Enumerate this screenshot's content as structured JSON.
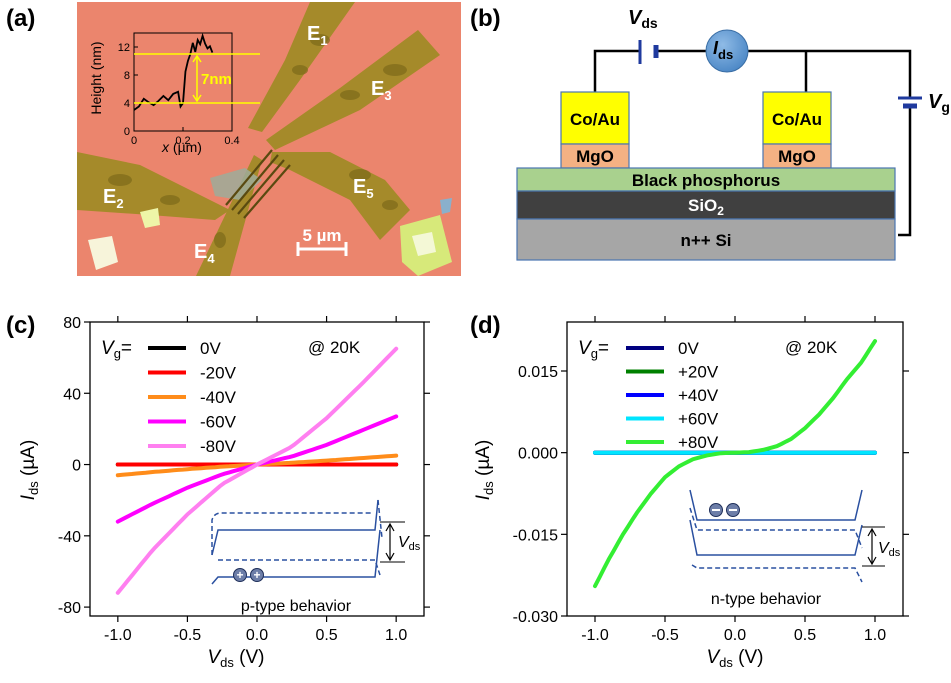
{
  "panel_a": {
    "label": "(a)",
    "electrodes": [
      {
        "name": "E",
        "sub": "1"
      },
      {
        "name": "E",
        "sub": "2"
      },
      {
        "name": "E",
        "sub": "3"
      },
      {
        "name": "E",
        "sub": "4"
      },
      {
        "name": "E",
        "sub": "5"
      }
    ],
    "scalebar": "5 µm",
    "inset": {
      "ylabel": "Height (nm)",
      "xlabel_main": "x",
      "xlabel_unit": " (µm)",
      "yticks": [
        "0",
        "4",
        "8",
        "12"
      ],
      "xticks": [
        "0",
        "0.2",
        "0.4"
      ],
      "step_label": "7nm",
      "profile": [
        [
          0.0,
          3.0
        ],
        [
          0.02,
          3.5
        ],
        [
          0.04,
          4.6
        ],
        [
          0.06,
          4.1
        ],
        [
          0.08,
          3.7
        ],
        [
          0.1,
          4.3
        ],
        [
          0.12,
          5.0
        ],
        [
          0.14,
          4.4
        ],
        [
          0.16,
          5.3
        ],
        [
          0.18,
          5.6
        ],
        [
          0.19,
          3.5
        ],
        [
          0.2,
          4.0
        ],
        [
          0.21,
          8.5
        ],
        [
          0.22,
          10.0
        ],
        [
          0.23,
          11.0
        ],
        [
          0.24,
          12.6
        ],
        [
          0.25,
          11.3
        ],
        [
          0.26,
          13.0
        ],
        [
          0.27,
          12.4
        ],
        [
          0.28,
          13.6
        ],
        [
          0.29,
          12.5
        ],
        [
          0.3,
          11.8
        ],
        [
          0.31,
          12.1
        ],
        [
          0.32,
          11.2
        ]
      ]
    }
  },
  "panel_b": {
    "label": "(b)",
    "vds": {
      "main": "V",
      "sub": "ds"
    },
    "ids": {
      "main": "I",
      "sub": "ds"
    },
    "vg": {
      "main": "V",
      "sub": "g"
    },
    "contact_left": "Co/Au",
    "contact_right": "Co/Au",
    "barrier_left": "MgO",
    "barrier_right": "MgO",
    "channel": "Black phosphorus",
    "oxide": {
      "main": "SiO",
      "sub": "2"
    },
    "substrate": "n++ Si",
    "colors": {
      "contact": "#ffff00",
      "barrier": "#f4b183",
      "channel": "#a9d18e",
      "oxide": "#404040",
      "substrate": "#a6a6a6",
      "meter": "#5b9bd5",
      "battery": "#1f3a9e"
    }
  },
  "panel_c": {
    "label": "(c)",
    "legend_title": "V",
    "legend_title_sub": "g",
    "legend_title_suffix": "=",
    "temperature": "@ 20K",
    "inset_text": "p-type behavior",
    "inset_vds": "V",
    "inset_vds_sub": "ds",
    "chart_data": {
      "type": "line",
      "xlabel": "V",
      "xlabel_sub": "ds",
      "xlabel_unit": " (V)",
      "ylabel": "I",
      "ylabel_sub": "ds",
      "ylabel_unit": " (µA)",
      "xlim": [
        -1.2,
        1.2
      ],
      "ylim": [
        -85,
        80
      ],
      "xticks": [
        "-1.0",
        "-0.5",
        "0.0",
        "0.5",
        "1.0"
      ],
      "yticks": [
        "-80",
        "-40",
        "0",
        "40",
        "80"
      ],
      "x": [
        -1.0,
        -0.75,
        -0.5,
        -0.25,
        0.0,
        0.25,
        0.5,
        0.75,
        1.0
      ],
      "series": [
        {
          "name": "0V",
          "color": "#000000",
          "values": [
            0,
            0,
            0,
            0,
            0,
            0,
            0,
            0,
            0
          ]
        },
        {
          "name": "-20V",
          "color": "#ff0000",
          "values": [
            0,
            0,
            0,
            0,
            0,
            0,
            0,
            0,
            0
          ]
        },
        {
          "name": "-40V",
          "color": "#ff8c1a",
          "values": [
            -6,
            -4.2,
            -2.6,
            -1.2,
            0,
            1.0,
            2.2,
            3.6,
            5
          ]
        },
        {
          "name": "-60V",
          "color": "#ff00ff",
          "values": [
            -32,
            -22,
            -13,
            -5.5,
            0,
            4.5,
            11,
            19,
            27
          ]
        },
        {
          "name": "-80V",
          "color": "#ff7ff0",
          "values": [
            -72,
            -48,
            -28,
            -11,
            0,
            10,
            26,
            45,
            65
          ]
        }
      ]
    }
  },
  "panel_d": {
    "label": "(d)",
    "legend_title": "V",
    "legend_title_sub": "g",
    "legend_title_suffix": "=",
    "temperature": "@ 20K",
    "inset_text": "n-type behavior",
    "inset_vds": "V",
    "inset_vds_sub": "ds",
    "chart_data": {
      "type": "line",
      "xlabel": "V",
      "xlabel_sub": "ds",
      "xlabel_unit": " (V)",
      "ylabel": "I",
      "ylabel_sub": "ds",
      "ylabel_unit": " (µA)",
      "xlim": [
        -1.2,
        1.2
      ],
      "ylim": [
        -0.03,
        0.024
      ],
      "xticks": [
        "-1.0",
        "-0.5",
        "0.0",
        "0.5",
        "1.0"
      ],
      "yticks": [
        "-0.030",
        "-0.015",
        "0.000",
        "0.015"
      ],
      "ytick_values": [
        -0.03,
        -0.015,
        0.0,
        0.015
      ],
      "x": [
        -1.0,
        -0.9,
        -0.8,
        -0.7,
        -0.6,
        -0.5,
        -0.4,
        -0.3,
        -0.2,
        -0.1,
        0.0,
        0.1,
        0.2,
        0.3,
        0.4,
        0.5,
        0.6,
        0.7,
        0.8,
        0.9,
        1.0
      ],
      "series": [
        {
          "name": "0V",
          "color": "#000080",
          "values": [
            0,
            0,
            0,
            0,
            0,
            0,
            0,
            0,
            0,
            0,
            0,
            0,
            0,
            0,
            0,
            0,
            0,
            0,
            0,
            0,
            0
          ]
        },
        {
          "name": "+20V",
          "color": "#008000",
          "values": [
            0,
            0,
            0,
            0,
            0,
            0,
            0,
            0,
            0,
            0,
            0,
            0,
            0,
            0,
            0,
            0,
            0,
            0,
            0,
            0,
            0
          ]
        },
        {
          "name": "+40V",
          "color": "#0000ff",
          "values": [
            0,
            0,
            0,
            0,
            0,
            0,
            0,
            0,
            0,
            0,
            0,
            0,
            0,
            0,
            0,
            0,
            0,
            0,
            0,
            0,
            0
          ]
        },
        {
          "name": "+60V",
          "color": "#00e5ff",
          "values": [
            0,
            0,
            0,
            0,
            0,
            0,
            0,
            0,
            0,
            0,
            0,
            0,
            0,
            0,
            0,
            0,
            0,
            0,
            0,
            0,
            0
          ]
        },
        {
          "name": "+80V",
          "color": "#33ee33",
          "values": [
            -0.0245,
            -0.0195,
            -0.015,
            -0.011,
            -0.0075,
            -0.0045,
            -0.0025,
            -0.0012,
            -0.0005,
            -0.0001,
            0,
            0.0001,
            0.0005,
            0.0012,
            0.0025,
            0.0045,
            0.007,
            0.01,
            0.0135,
            0.0165,
            0.0205
          ]
        }
      ]
    }
  }
}
